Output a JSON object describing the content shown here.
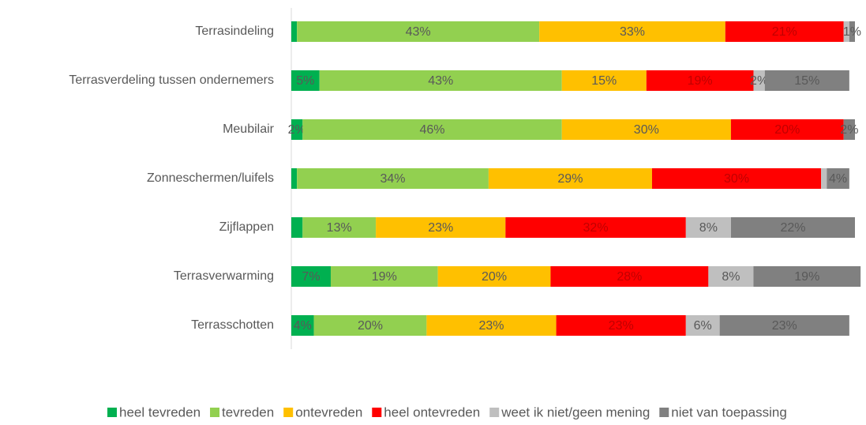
{
  "chart_data": {
    "type": "stacked-bar-horizontal",
    "categories": [
      "Terrasindeling",
      "Terrasverdeling tussen ondernemers",
      "Meubilair",
      "Zonneschermen/luifels",
      "Zijflappen",
      "Terrasverwarming",
      "Terrasschotten"
    ],
    "xlim": [
      0,
      100
    ],
    "legend": "bottom",
    "series": [
      {
        "name": "heel tevreden",
        "color": "#00b050",
        "values": [
          1,
          5,
          2,
          1,
          2,
          7,
          4
        ],
        "value_labels": [
          null,
          "5%",
          "2%",
          null,
          null,
          "7%",
          "4%"
        ]
      },
      {
        "name": "tevreden",
        "color": "#92d050",
        "values": [
          43,
          43,
          46,
          34,
          13,
          19,
          20
        ],
        "value_labels": [
          "43%",
          "43%",
          "46%",
          "34%",
          "13%",
          "19%",
          "20%"
        ]
      },
      {
        "name": "ontevreden",
        "color": "#ffc000",
        "values": [
          33,
          15,
          30,
          29,
          23,
          20,
          23
        ],
        "value_labels": [
          "33%",
          "15%",
          "30%",
          "29%",
          "23%",
          "20%",
          "23%"
        ]
      },
      {
        "name": "heel ontevreden",
        "color": "#ff0000",
        "values": [
          21,
          19,
          20,
          30,
          32,
          28,
          23
        ],
        "value_labels": [
          "21%",
          "19%",
          "20%",
          "30%",
          "32%",
          "28%",
          "23%"
        ]
      },
      {
        "name": "weet ik niet/geen mening",
        "color": "#bfbfbf",
        "values": [
          1,
          2,
          0,
          1,
          8,
          8,
          6
        ],
        "value_labels": [
          null,
          "2%",
          null,
          null,
          "8%",
          "8%",
          "6%"
        ]
      },
      {
        "name": "niet van toepassing",
        "color": "#808080",
        "values": [
          1,
          15,
          2,
          4,
          22,
          19,
          23
        ],
        "value_labels": [
          "1%",
          "15%",
          "2%",
          "4%",
          "22%",
          "19%",
          "23%"
        ]
      }
    ]
  }
}
